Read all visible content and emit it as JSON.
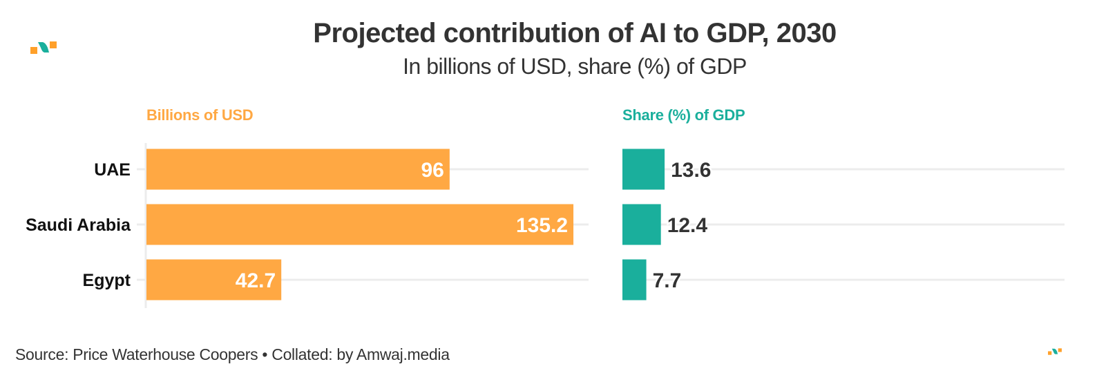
{
  "header": {
    "title": "Projected contribution of AI to GDP, 2030",
    "subtitle": "In billions of USD, share (%) of GDP"
  },
  "footer": {
    "source": "Source: Price Waterhouse Coopers • Collated: by Amwaj.media"
  },
  "colors": {
    "usd": "#ffa843",
    "share": "#1aaf9c",
    "text": "#333333",
    "grid": "#ececec"
  },
  "chart_data": [
    {
      "type": "bar",
      "orientation": "horizontal",
      "title": "Billions of USD",
      "categories": [
        "UAE",
        "Saudi Arabia",
        "Egypt"
      ],
      "values": [
        96,
        135.2,
        42.7
      ],
      "value_labels": [
        "96",
        "135.2",
        "42.7"
      ],
      "xlim": [
        0,
        140
      ],
      "grid": true,
      "label_position": "inside-end"
    },
    {
      "type": "bar",
      "orientation": "horizontal",
      "title": "Share (%) of GDP",
      "categories": [
        "UAE",
        "Saudi Arabia",
        "Egypt"
      ],
      "values": [
        13.6,
        12.4,
        7.7
      ],
      "value_labels": [
        "13.6",
        "12.4",
        "7.7"
      ],
      "xlim": [
        0,
        142.5
      ],
      "grid": true,
      "label_position": "outside-end"
    }
  ]
}
